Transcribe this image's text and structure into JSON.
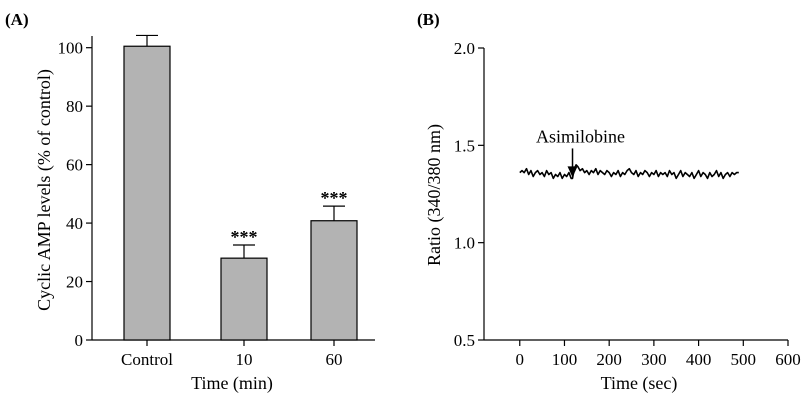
{
  "chart_data": [
    {
      "panel_label": "(A)",
      "type": "bar",
      "categories": [
        "Control",
        "10",
        "60"
      ],
      "values": [
        100.5,
        28,
        40.8
      ],
      "errors": [
        3.7,
        4.5,
        5
      ],
      "annotations": [
        "",
        "***",
        "***"
      ],
      "xlabel": "Time (min)",
      "ylabel": "Cyclic AMP levels (% of control)",
      "ylim": [
        0,
        104
      ],
      "yticks": [
        "0",
        "20",
        "40",
        "60",
        "80",
        "100"
      ],
      "bar_color": "#b3b3b3",
      "grid": false
    },
    {
      "panel_label": "(B)",
      "type": "line",
      "xlabel": "Time (sec)",
      "ylabel": "Ratio (340/380 nm)",
      "xlim": [
        -80,
        600
      ],
      "ylim": [
        0.5,
        2.0
      ],
      "xticks": [
        "0",
        "100",
        "200",
        "300",
        "400",
        "500",
        "600"
      ],
      "yticks": [
        "0.5",
        "1.0",
        "1.5",
        "2.0"
      ],
      "annotation": {
        "text": "Asimilobine",
        "x": 118,
        "y": 1.33
      },
      "series": [
        {
          "x": [
            0,
            5,
            10,
            15,
            20,
            25,
            30,
            35,
            40,
            45,
            50,
            55,
            60,
            65,
            70,
            75,
            80,
            85,
            90,
            95,
            100,
            105,
            110,
            115,
            118,
            122,
            126,
            130,
            135,
            140,
            145,
            150,
            155,
            160,
            165,
            170,
            175,
            180,
            185,
            190,
            195,
            200,
            205,
            210,
            215,
            220,
            225,
            230,
            235,
            240,
            245,
            250,
            255,
            260,
            265,
            270,
            275,
            280,
            285,
            290,
            295,
            300,
            305,
            310,
            315,
            320,
            325,
            330,
            335,
            340,
            345,
            350,
            355,
            360,
            365,
            370,
            375,
            380,
            385,
            390,
            395,
            400,
            405,
            410,
            415,
            420,
            425,
            430,
            435,
            440,
            445,
            450,
            455,
            460,
            465,
            470,
            475,
            480,
            485,
            490
          ],
          "y": [
            1.36,
            1.37,
            1.36,
            1.38,
            1.35,
            1.37,
            1.34,
            1.36,
            1.37,
            1.35,
            1.36,
            1.34,
            1.37,
            1.35,
            1.36,
            1.33,
            1.35,
            1.34,
            1.36,
            1.33,
            1.35,
            1.34,
            1.36,
            1.33,
            1.33,
            1.38,
            1.4,
            1.39,
            1.37,
            1.38,
            1.36,
            1.37,
            1.35,
            1.37,
            1.36,
            1.38,
            1.35,
            1.37,
            1.36,
            1.35,
            1.37,
            1.36,
            1.34,
            1.36,
            1.35,
            1.37,
            1.34,
            1.36,
            1.35,
            1.37,
            1.38,
            1.36,
            1.35,
            1.37,
            1.34,
            1.36,
            1.35,
            1.37,
            1.36,
            1.34,
            1.36,
            1.35,
            1.37,
            1.34,
            1.36,
            1.35,
            1.36,
            1.34,
            1.37,
            1.35,
            1.36,
            1.33,
            1.35,
            1.37,
            1.34,
            1.36,
            1.35,
            1.34,
            1.36,
            1.33,
            1.35,
            1.37,
            1.34,
            1.36,
            1.35,
            1.33,
            1.36,
            1.34,
            1.35,
            1.37,
            1.34,
            1.36,
            1.33,
            1.35,
            1.36,
            1.34,
            1.36,
            1.35,
            1.36,
            1.36
          ]
        }
      ],
      "grid": false
    }
  ]
}
